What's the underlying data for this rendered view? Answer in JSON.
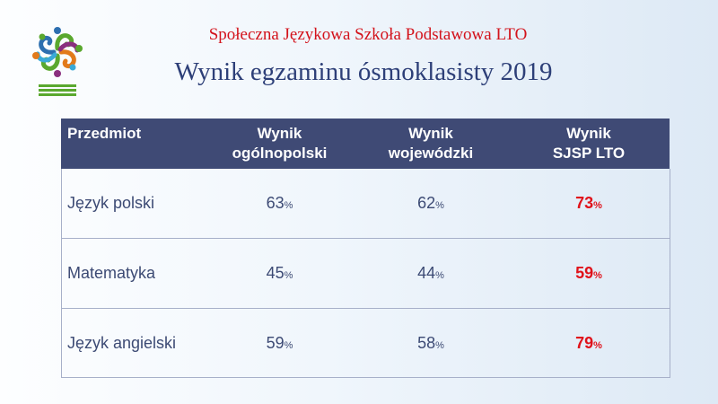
{
  "header": {
    "school_name": "Społeczna Językowa Szkoła Podstawowa LTO",
    "title": "Wynik egzaminu ósmoklasisty 2019"
  },
  "logo": {
    "icon": "school-logo-icon",
    "colors": [
      "#5aa82e",
      "#2d6fb0",
      "#8a2f7e",
      "#e27a1b",
      "#3aa9d8"
    ]
  },
  "table": {
    "headers": {
      "subject": "Przedmiot",
      "national_line1": "Wynik",
      "national_line2": "ogólnopolski",
      "regional_line1": "Wynik",
      "regional_line2": "wojewódzki",
      "school_line1": "Wynik",
      "school_line2": "SJSP LTO"
    },
    "unit": "%",
    "rows": [
      {
        "subject": "Język polski",
        "national": "63",
        "regional": "62",
        "school": "73"
      },
      {
        "subject": "Matematyka",
        "national": "45",
        "regional": "44",
        "school": "59"
      },
      {
        "subject": "Język angielski",
        "national": "59",
        "regional": "58",
        "school": "79"
      }
    ]
  },
  "colors": {
    "header_bg": "#3f4a75",
    "highlight": "#e0121a",
    "title": "#2d3f78",
    "school_name": "#d3131b"
  }
}
